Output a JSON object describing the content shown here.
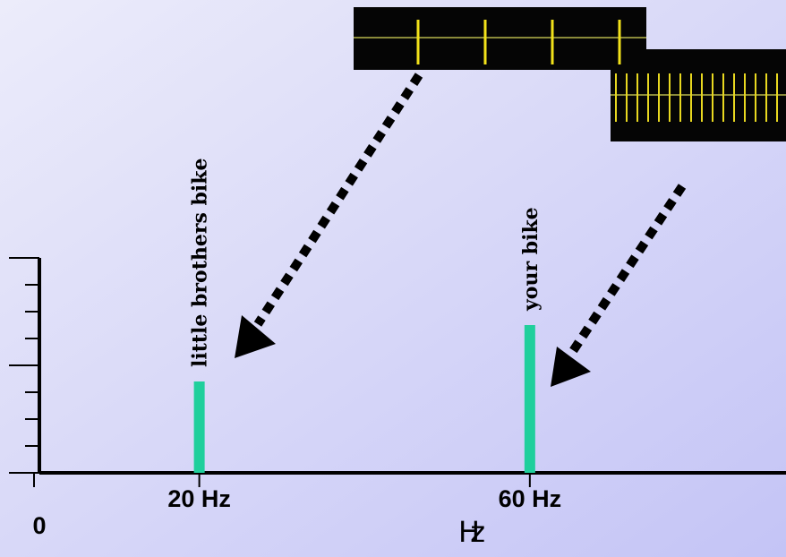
{
  "chart_data": {
    "type": "bar",
    "x": [
      20,
      60
    ],
    "values": [
      3.4,
      5.5
    ],
    "labels": [
      "little brothers bike",
      "your bike"
    ],
    "color": "#1fcf9c",
    "xlabel": "Hz",
    "xlim": [
      0,
      91
    ],
    "xticks": [
      {
        "value": 0,
        "label": "0"
      },
      {
        "value": 20,
        "label": "20 Hz"
      },
      {
        "value": 60,
        "label": "60 Hz"
      }
    ],
    "ylim": [
      0,
      8
    ],
    "yticks": [
      0,
      1,
      2,
      3,
      4,
      5,
      6,
      7,
      8
    ]
  }
}
